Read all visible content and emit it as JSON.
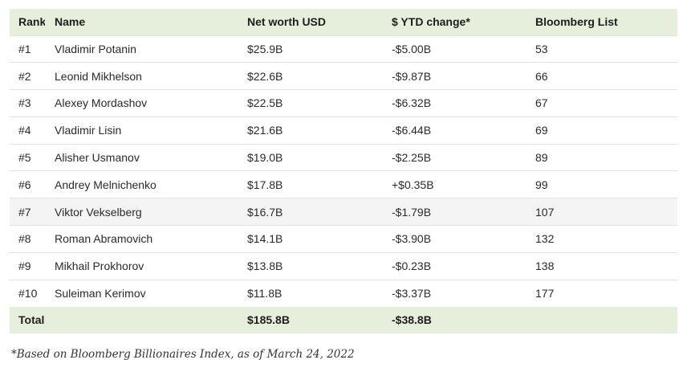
{
  "table": {
    "headers": [
      "Rank",
      "Name",
      "Net worth USD",
      "$ YTD change*",
      "Bloomberg List"
    ],
    "rows": [
      {
        "rank": "#1",
        "name": "Vladimir Potanin",
        "net_worth": "$25.9B",
        "ytd_change": "-$5.00B",
        "bloomberg_list": "53"
      },
      {
        "rank": "#2",
        "name": "Leonid Mikhelson",
        "net_worth": "$22.6B",
        "ytd_change": "-$9.87B",
        "bloomberg_list": "66"
      },
      {
        "rank": "#3",
        "name": "Alexey Mordashov",
        "net_worth": "$22.5B",
        "ytd_change": "-$6.32B",
        "bloomberg_list": "67"
      },
      {
        "rank": "#4",
        "name": "Vladimir Lisin",
        "net_worth": "$21.6B",
        "ytd_change": "-$6.44B",
        "bloomberg_list": "69"
      },
      {
        "rank": "#5",
        "name": "Alisher Usmanov",
        "net_worth": "$19.0B",
        "ytd_change": "-$2.25B",
        "bloomberg_list": "89"
      },
      {
        "rank": "#6",
        "name": "Andrey Melnichenko",
        "net_worth": "$17.8B",
        "ytd_change": "+$0.35B",
        "bloomberg_list": "99"
      },
      {
        "rank": "#7",
        "name": "Viktor Vekselberg",
        "net_worth": "$16.7B",
        "ytd_change": "-$1.79B",
        "bloomberg_list": "107"
      },
      {
        "rank": "#8",
        "name": "Roman Abramovich",
        "net_worth": "$14.1B",
        "ytd_change": "-$3.90B",
        "bloomberg_list": "132"
      },
      {
        "rank": "#9",
        "name": "Mikhail Prokhorov",
        "net_worth": "$13.8B",
        "ytd_change": "-$0.23B",
        "bloomberg_list": "138"
      },
      {
        "rank": "#10",
        "name": "Suleiman Kerimov",
        "net_worth": "$11.8B",
        "ytd_change": "-$3.37B",
        "bloomberg_list": "177"
      }
    ],
    "total": {
      "label": "Total",
      "net_worth": "$185.8B",
      "ytd_change": "-$38.8B",
      "bloomberg_list": ""
    }
  },
  "footnote": "*Based on Bloomberg Billionaires Index, as of March 24, 2022",
  "colors": {
    "header_bg": "#e6efdc",
    "total_bg": "#e6efdc",
    "shaded_row_bg": "#f4f4f4"
  }
}
